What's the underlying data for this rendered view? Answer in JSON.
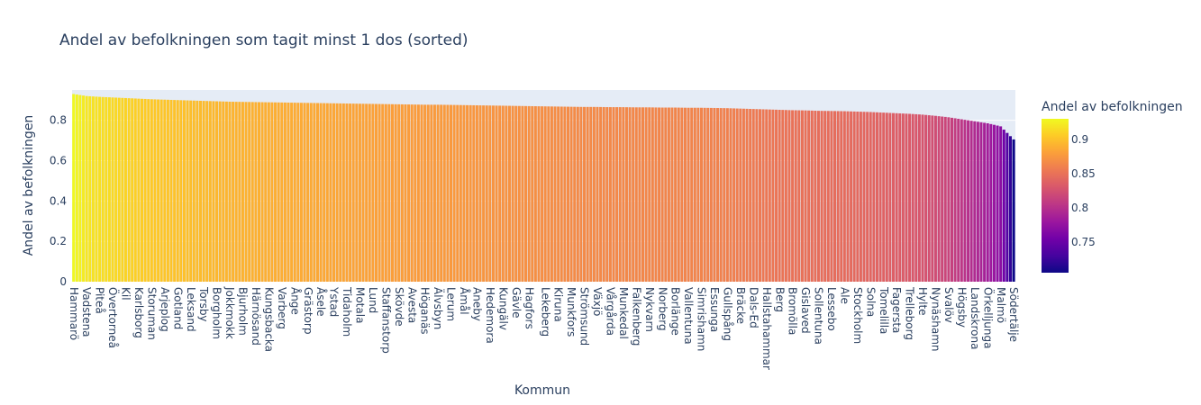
{
  "chart_data": {
    "type": "bar",
    "title": "Andel av befolkningen som tagit minst 1 dos (sorted)",
    "xlabel": "Kommun",
    "ylabel": "Andel av befolkningen",
    "ylim": [
      0,
      0.95
    ],
    "y_ticks": [
      0,
      0.2,
      0.4,
      0.6,
      0.8
    ],
    "grid": true,
    "bar_count": 290,
    "categories": [
      "Hammarö",
      "Vadstena",
      "Piteå",
      "Övertorneå",
      "Kil",
      "Karlsborg",
      "Storuman",
      "Arjeplog",
      "Gotland",
      "Leksand",
      "Torsby",
      "Borgholm",
      "Jokkmokk",
      "Bjurholm",
      "Härnösand",
      "Kungsbacka",
      "Varberg",
      "Ånge",
      "Grästorp",
      "Åsele",
      "Ystad",
      "Tidaholm",
      "Motala",
      "Lund",
      "Staffanstorp",
      "Skövde",
      "Avesta",
      "Höganäs",
      "Älvsbyn",
      "Lerum",
      "Åmål",
      "Aneby",
      "Hedemora",
      "Kungälv",
      "Gävle",
      "Hagfors",
      "Lekeberg",
      "Kiruna",
      "Munkfors",
      "Strömsund",
      "Växjö",
      "Vårgårda",
      "Munkedal",
      "Falkenberg",
      "Nykvarn",
      "Norberg",
      "Borlänge",
      "Vallentuna",
      "Simrishamn",
      "Essunga",
      "Gullspång",
      "Bräcke",
      "Dals-Ed",
      "Hallstahammar",
      "Berg",
      "Bromölla",
      "Gislaved",
      "Sollentuna",
      "Lessebo",
      "Ale",
      "Stockholm",
      "Solna",
      "Tomelilla",
      "Fagersta",
      "Trelleborg",
      "Hylte",
      "Nynäshamn",
      "Svalöv",
      "Högsby",
      "Landskrona",
      "Örkelljunga",
      "Malmö",
      "Södertälje"
    ],
    "values": [
      0.93,
      0.92,
      0.916,
      0.913,
      0.91,
      0.907,
      0.904,
      0.902,
      0.9,
      0.898,
      0.896,
      0.894,
      0.892,
      0.891,
      0.89,
      0.889,
      0.888,
      0.887,
      0.886,
      0.885,
      0.884,
      0.883,
      0.882,
      0.881,
      0.88,
      0.879,
      0.878,
      0.877,
      0.877,
      0.876,
      0.875,
      0.874,
      0.873,
      0.872,
      0.871,
      0.87,
      0.869,
      0.868,
      0.867,
      0.866,
      0.866,
      0.865,
      0.865,
      0.864,
      0.864,
      0.863,
      0.863,
      0.862,
      0.862,
      0.861,
      0.86,
      0.858,
      0.856,
      0.854,
      0.852,
      0.85,
      0.849,
      0.847,
      0.846,
      0.845,
      0.843,
      0.841,
      0.838,
      0.835,
      0.832,
      0.828,
      0.822,
      0.815,
      0.805,
      0.795,
      0.785,
      0.77,
      0.705
    ],
    "colorbar": {
      "title": "Andel av befolkningen",
      "range": [
        0.705,
        0.93
      ],
      "ticks": [
        0.75,
        0.8,
        0.85,
        0.9
      ],
      "colors": [
        "#0d0887",
        "#46039f",
        "#7201a8",
        "#9c179e",
        "#bd3786",
        "#d8576b",
        "#ed7953",
        "#fb9f3a",
        "#fdca26",
        "#f0f921"
      ]
    }
  }
}
